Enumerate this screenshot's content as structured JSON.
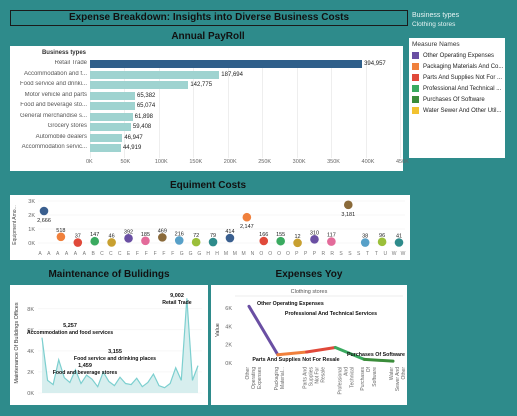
{
  "dashboard_title": "Expense Breakdown: Insights into Diverse Business Costs",
  "legend": {
    "business_types_title": "Business types",
    "business_types_value": "Clothing stores",
    "measure_title": "Measure Names",
    "measures": [
      {
        "label": "Other Operating Expenses",
        "color": "#6a4fa3"
      },
      {
        "label": "Packaging Materials And Co...",
        "color": "#f0803c"
      },
      {
        "label": "Parts And Supplies Not For ...",
        "color": "#e0493a"
      },
      {
        "label": "Professional And Technical ...",
        "color": "#3aaa60"
      },
      {
        "label": "Purchases Of Software",
        "color": "#3a8c3a"
      },
      {
        "label": "Water Sewer And Other Util...",
        "color": "#f2c230"
      }
    ]
  },
  "payroll": {
    "title": "Annual PayRoll",
    "header": "Business types",
    "x_ticks": [
      "0K",
      "50K",
      "100K",
      "150K",
      "200K",
      "250K",
      "300K",
      "350K",
      "400K",
      "450K"
    ],
    "chart_data": {
      "type": "bar",
      "categories": [
        "Retail Trade",
        "Accommodation and f...",
        "Food service and drinki...",
        "Motor vehicle and parts",
        "Food and beverage sto...",
        "General merchandise s...",
        "Grocery stores",
        "Automobile dealers",
        "Accommodation servic..."
      ],
      "values": [
        394957,
        187694,
        142775,
        65382,
        65074,
        61898,
        59408,
        46947,
        44919
      ],
      "labels": [
        "394,957",
        "187,694",
        "142,775",
        "65,382",
        "65,074",
        "61,898",
        "59,408",
        "46,947",
        "44,919"
      ],
      "xlim": [
        0,
        450000
      ]
    }
  },
  "equipment": {
    "title": "Equiment Costs",
    "ylabel": "Equipment Amo...",
    "y_ticks": [
      "3K",
      "2K",
      "1K",
      "0K"
    ],
    "x_tick_letters": [
      "A",
      "A",
      "A",
      "A",
      "A",
      "A",
      "B",
      "C",
      "C",
      "C",
      "E",
      "F",
      "F",
      "F",
      "F",
      "F",
      "G",
      "G",
      "G",
      "H",
      "H",
      "M",
      "M",
      "M",
      "N",
      "O",
      "O",
      "O",
      "O",
      "P",
      "P",
      "P",
      "R",
      "R",
      "S",
      "S",
      "S",
      "T",
      "T",
      "U",
      "W",
      "W"
    ],
    "chart_data": {
      "type": "scatter",
      "labels": [
        "2,666",
        "518",
        "37",
        "147",
        "46",
        "392",
        "185",
        "469",
        "216",
        "72",
        "79",
        "414",
        "2,147",
        "166",
        "155",
        "12",
        "310",
        "117",
        "3,181",
        "38",
        "96",
        "41"
      ],
      "values": [
        2666,
        518,
        37,
        147,
        46,
        392,
        185,
        469,
        216,
        72,
        79,
        414,
        2147,
        166,
        155,
        12,
        310,
        117,
        3181,
        38,
        96,
        41
      ],
      "ylim": [
        0,
        3500
      ]
    }
  },
  "maintenance": {
    "title": "Maintenance of Bulidings",
    "ylabel": "Maintenance Of Buildings Offices",
    "y_ticks": [
      "8K",
      "6K",
      "4K",
      "2K",
      "0K"
    ],
    "chart_data": {
      "type": "line",
      "annotations": [
        {
          "label": "Retail Trade",
          "value": "9,002"
        },
        {
          "label": "Accommodation and food services",
          "value": "5,257"
        },
        {
          "label": "Food service and drinking places",
          "value": "3,155"
        },
        {
          "label": "Food and beverage stores",
          "value": "1,459"
        }
      ],
      "values": [
        5257,
        1200,
        800,
        3155,
        1459,
        1000,
        2200,
        900,
        1700,
        1300,
        600,
        2000,
        1100,
        700,
        1500,
        900,
        800,
        1400,
        600,
        1000,
        1800,
        700,
        500,
        900,
        2400,
        1200,
        9002,
        1200,
        2600
      ],
      "ylim": [
        0,
        9500
      ]
    }
  },
  "expenses_yoy": {
    "title": "Expenses Yoy",
    "subtitle": "Clothing stores",
    "ylabel": "Value",
    "y_ticks": [
      "6K",
      "4K",
      "2K",
      "0K"
    ],
    "categories": [
      "Other Operating Expenses",
      "Packaging Material...",
      "Parts And Supplies Not For Resale",
      "Professional And Technical S...",
      "Purchases Of Software",
      "Water Sewer And Other Utility"
    ],
    "annotations": [
      {
        "label": "Other Operating Expenses"
      },
      {
        "label": "Professional And Technical Services"
      },
      {
        "label": "Parts And Supplies Not For Resale"
      },
      {
        "label": "Purchases Of Software"
      }
    ],
    "chart_data": {
      "type": "line",
      "values": [
        6200,
        900,
        1200,
        1700,
        400,
        200
      ],
      "ylim": [
        0,
        7000
      ]
    }
  }
}
